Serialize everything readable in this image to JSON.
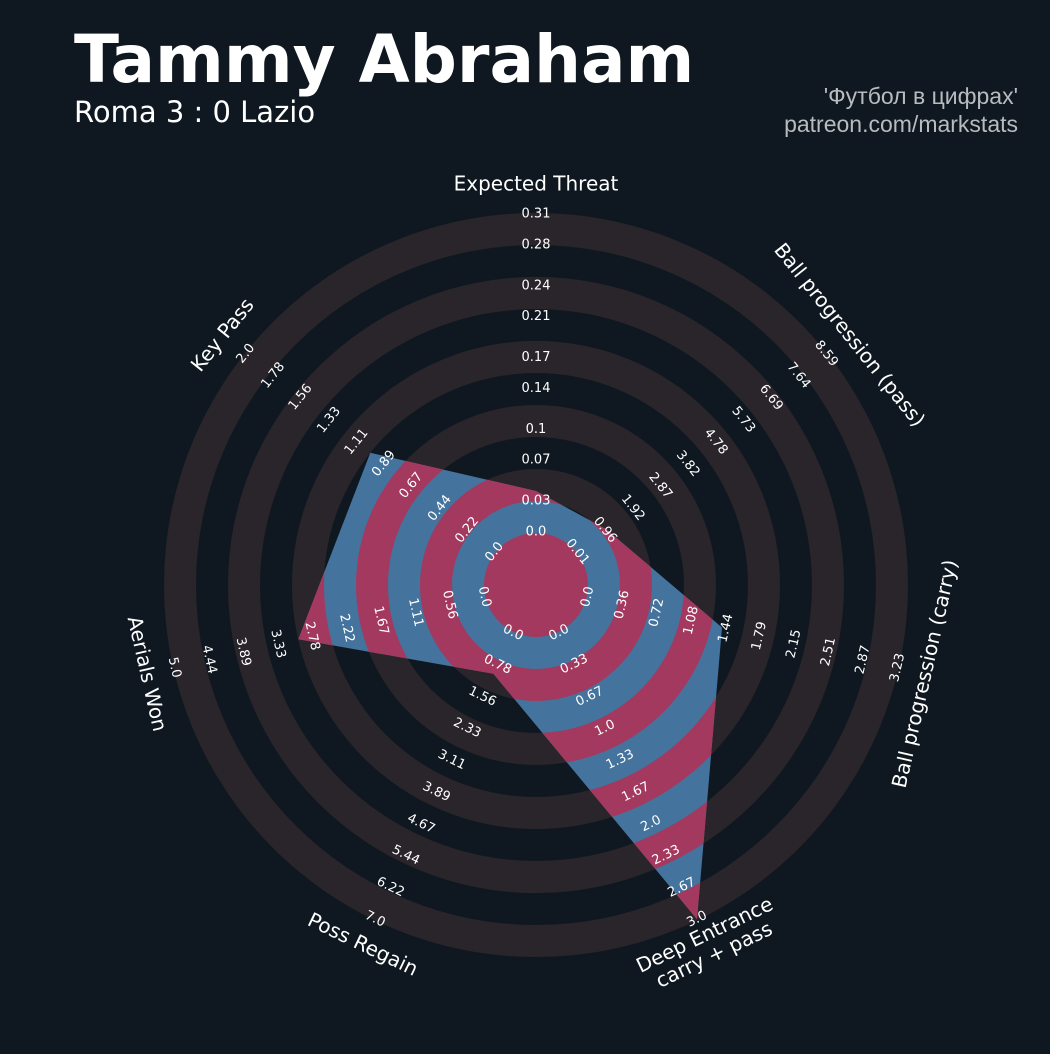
{
  "chart_data": {
    "type": "radar",
    "title": "Tammy Abraham",
    "subtitle": "Roma 3 : 0 Lazio",
    "credits": [
      "'Футбол в цифрах'",
      "patreon.com/markstats"
    ],
    "color": "#44739d",
    "ring_color": "#29252b",
    "highlight_color": "#a3395e",
    "axes": [
      {
        "name": "Expected Threat",
        "lim": [
          0,
          0.31
        ],
        "ticks": [
          {
            "value": 0,
            "label": "0.0"
          },
          0.03,
          0.07,
          0.1,
          0.14,
          0.17,
          0.21,
          0.24,
          0.28,
          0.31
        ]
      },
      {
        "name": "Ball progression (pass)",
        "lim": [
          0.01,
          8.59
        ],
        "ticks": [
          0.01,
          0.96,
          1.92,
          2.87,
          3.82,
          4.78,
          5.73,
          6.69,
          7.64,
          8.59
        ]
      },
      {
        "name": "Ball progression (carry)",
        "lim": [
          0,
          3.23
        ],
        "ticks": [
          {
            "value": 0,
            "label": "0.0"
          },
          0.36,
          0.72,
          1.08,
          1.44,
          1.79,
          2.15,
          2.51,
          2.87,
          3.23
        ]
      },
      {
        "name": "Deep Entrance\ncarry + pass",
        "lim": [
          0,
          3
        ],
        "ticks": [
          {
            "value": 0,
            "label": "0.0"
          },
          0.33,
          0.67,
          {
            "value": 1,
            "label": "1.0"
          },
          1.33,
          1.67,
          {
            "value": 2,
            "label": "2.0"
          },
          2.33,
          2.67,
          {
            "value": 3,
            "label": "3.0"
          }
        ]
      },
      {
        "name": "Poss Regain",
        "lim": [
          0,
          7
        ],
        "ticks": [
          {
            "value": 0,
            "label": "0.0"
          },
          0.78,
          1.56,
          2.33,
          3.11,
          3.89,
          4.67,
          5.44,
          6.22,
          {
            "value": 7,
            "label": "7.0"
          }
        ]
      },
      {
        "name": "Aerials Won",
        "lim": [
          0,
          5
        ],
        "ticks": [
          {
            "value": 0,
            "label": "0.0"
          },
          0.56,
          1.11,
          1.67,
          2.22,
          2.78,
          3.33,
          3.89,
          4.44,
          {
            "value": 5,
            "label": "5.0"
          }
        ]
      },
      {
        "name": "Key Pass",
        "lim": [
          0,
          2
        ],
        "ticks": [
          {
            "value": 0,
            "label": "0.0"
          },
          0.22,
          0.44,
          0.67,
          0.89,
          1.11,
          1.33,
          1.56,
          1.78,
          {
            "value": 2,
            "label": "2.0"
          }
        ]
      }
    ],
    "values": [
      0.04,
      1.0,
      1.4,
      3.0,
      1.0,
      3.0,
      1.0
    ]
  }
}
